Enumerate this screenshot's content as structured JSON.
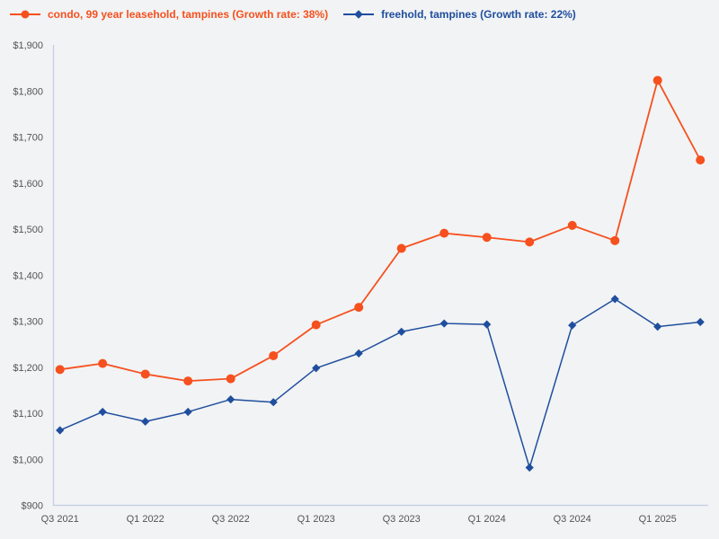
{
  "legend": {
    "series1_label": "condo, 99 year leasehold, tampines (Growth rate: 38%)",
    "series2_label": "freehold, tampines (Growth rate: 22%)"
  },
  "colors": {
    "background": "#F1F3F4",
    "axis_line": "#C3CDE2",
    "tick_text": "#545454",
    "series1": "#F6501E",
    "series2": "#204E9E"
  },
  "chart_data": {
    "type": "line",
    "title": "",
    "xlabel": "",
    "ylabel": "",
    "x": [
      "Q3 2021",
      "Q4 2021",
      "Q1 2022",
      "Q2 2022",
      "Q3 2022",
      "Q4 2022",
      "Q1 2023",
      "Q2 2023",
      "Q3 2023",
      "Q4 2023",
      "Q1 2024",
      "Q2 2024",
      "Q3 2024",
      "Q4 2024",
      "Q1 2025",
      "Q2 2025"
    ],
    "x_tick_labels": [
      "Q3 2021",
      "Q1 2022",
      "Q3 2022",
      "Q1 2023",
      "Q3 2023",
      "Q1 2024",
      "Q3 2024",
      "Q1 2025"
    ],
    "x_tick_every": 2,
    "series": [
      {
        "name": "condo, 99 year leasehold, tampines",
        "growth_rate": "38%",
        "color": "#F6501E",
        "marker": "circle",
        "values": [
          1195,
          1208,
          1185,
          1170,
          1175,
          1225,
          1292,
          1330,
          1458,
          1491,
          1482,
          1472,
          1508,
          1475,
          1823,
          1650
        ]
      },
      {
        "name": "freehold, tampines",
        "growth_rate": "22%",
        "color": "#204E9E",
        "marker": "diamond",
        "values": [
          1063,
          1103,
          1082,
          1103,
          1130,
          1124,
          1198,
          1230,
          1277,
          1295,
          1293,
          982,
          1291,
          1348,
          1288,
          1298
        ]
      }
    ],
    "ylim": [
      900,
      1900
    ],
    "y_ticks": [
      "$900",
      "$1,000",
      "$1,100",
      "$1,200",
      "$1,300",
      "$1,400",
      "$1,500",
      "$1,600",
      "$1,700",
      "$1,800",
      "$1,900"
    ],
    "y_tick_values": [
      900,
      1000,
      1100,
      1200,
      1300,
      1400,
      1500,
      1600,
      1700,
      1800,
      1900
    ],
    "grid": false,
    "legend_position": "top"
  }
}
